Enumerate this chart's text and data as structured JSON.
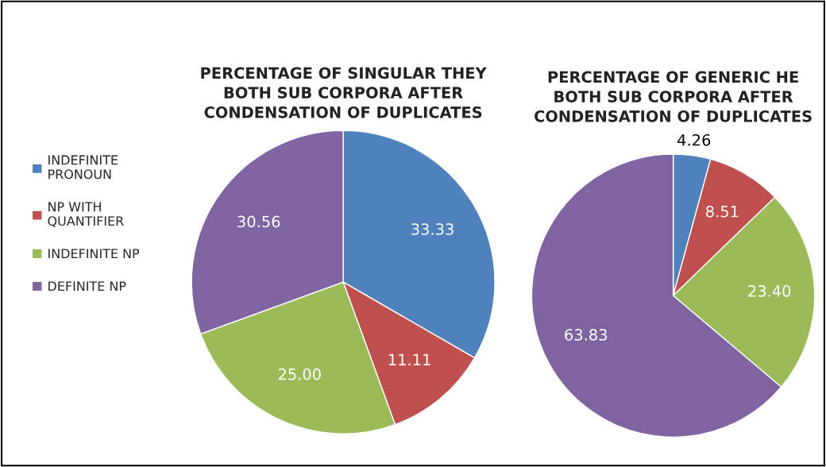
{
  "chart_data": [
    {
      "type": "pie",
      "title": "PERCENTAGE OF SINGULAR THEY\nBOTH SUB CORPORA AFTER\nCONDENSATION OF DUPLICATES",
      "categories": [
        "INDEFINITE\nPRONOUN",
        "NP WITH\nQUANTIFIER",
        "INDEFINITE NP",
        "DEFINITE NP"
      ],
      "values": [
        33.33,
        11.11,
        25.0,
        30.56
      ],
      "value_labels": [
        "33.33",
        "11.11",
        "25.00",
        "30.56"
      ],
      "colors": [
        "#4f81bd",
        "#c0504d",
        "#9bbb59",
        "#8064a2"
      ],
      "legend": "left"
    },
    {
      "type": "pie",
      "title": "PERCENTAGE OF GENERIC HE\nBOTH SUB CORPORA AFTER\nCONDENSATION OF DUPLICATES",
      "categories": [
        null,
        null,
        null,
        null
      ],
      "values": [
        4.26,
        8.51,
        23.4,
        63.83
      ],
      "value_labels": [
        "4.26",
        "8.51",
        "23.40",
        "63.83"
      ],
      "colors": [
        "#4f81bd",
        "#c0504d",
        "#9bbb59",
        "#8064a2"
      ]
    }
  ]
}
